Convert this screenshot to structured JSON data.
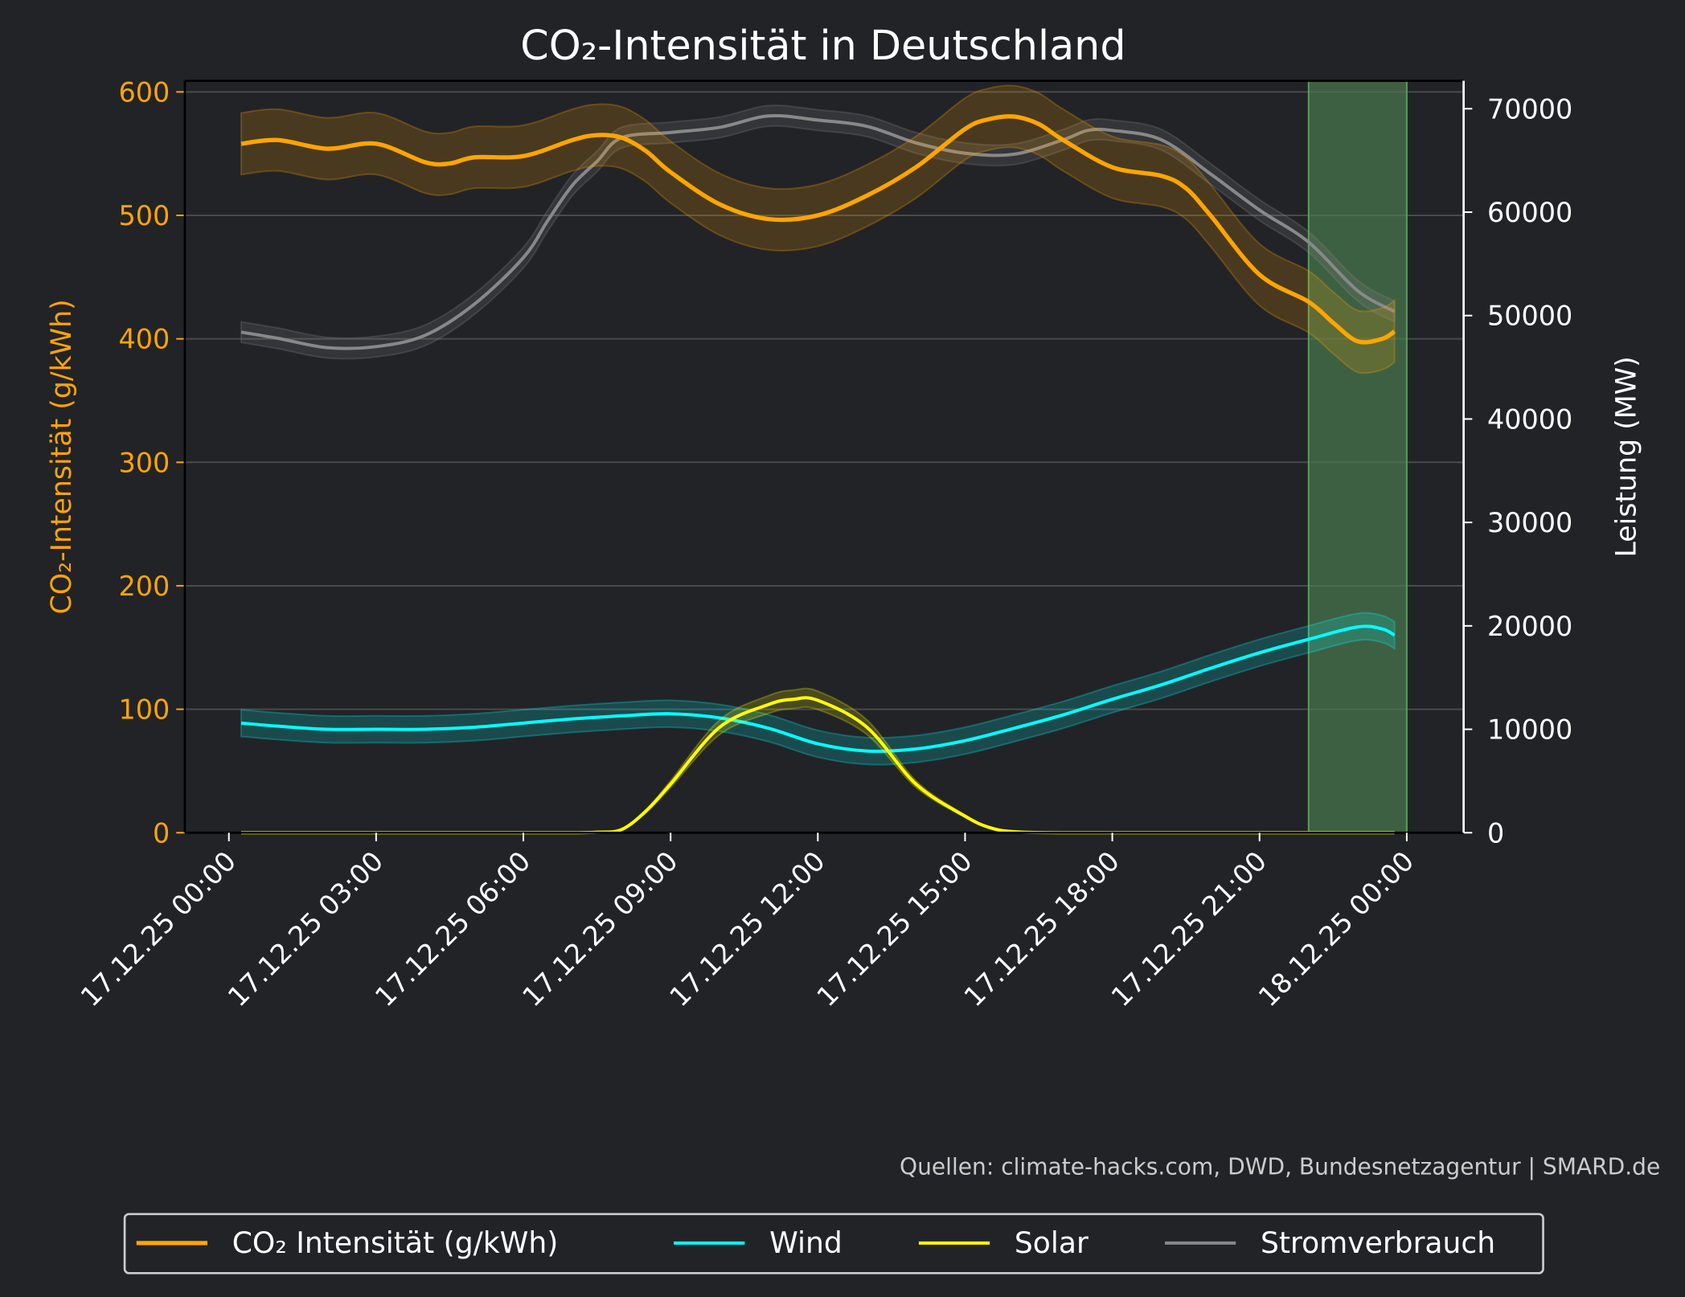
{
  "chart_data": {
    "type": "line",
    "title": "CO₂-Intensität in Deutschland",
    "source": "Quellen: climate-hacks.com, DWD, Bundesnetzagentur | SMARD.de",
    "grid": true,
    "legend_position": "bottom",
    "background": "#222327",
    "x_tick_labels": [
      "17.12.25 00:00",
      "17.12.25 03:00",
      "17.12.25 06:00",
      "17.12.25 09:00",
      "17.12.25 12:00",
      "17.12.25 15:00",
      "17.12.25 18:00",
      "17.12.25 21:00",
      "18.12.25 00:00"
    ],
    "x_unit": "hours since 17.12.25 00:00",
    "highlight_span": {
      "from": 22,
      "to": 24,
      "color": "#4a7a4e"
    },
    "left_axis": {
      "label": "CO₂-Intensität (g/kWh)",
      "ylim": [
        0,
        609
      ],
      "ticks": [
        0,
        100,
        200,
        300,
        400,
        500,
        600
      ],
      "color": "#ffa500"
    },
    "right_axis": {
      "label": "Leistung (MW)",
      "ylim": [
        0,
        72700
      ],
      "ticks": [
        0,
        10000,
        20000,
        30000,
        40000,
        50000,
        60000,
        70000
      ],
      "color": "#ffffff"
    },
    "series": [
      {
        "name": "CO₂ Intensität (g/kWh)",
        "axis": "left",
        "color": "#ffa500",
        "band": 25,
        "x": [
          0.25,
          1,
          2,
          3,
          4,
          4.5,
          5,
          6,
          7,
          7.5,
          8,
          8.5,
          9,
          10,
          11,
          12,
          13,
          14,
          15,
          15.5,
          16,
          16.5,
          17,
          18,
          19,
          19.5,
          20,
          21,
          22,
          22.5,
          23,
          23.5,
          23.75
        ],
        "y": [
          558,
          561,
          554,
          558,
          543,
          542,
          547,
          548,
          561,
          565,
          563,
          552,
          535,
          509,
          497,
          500,
          516,
          539,
          570,
          578,
          580,
          574,
          561,
          539,
          532,
          522,
          500,
          452,
          430,
          413,
          398,
          400,
          406
        ]
      },
      {
        "name": "Wind",
        "axis": "right",
        "color": "#00ffff",
        "band": 1300,
        "x": [
          0.25,
          1,
          2,
          3,
          4,
          5,
          6,
          7,
          8,
          9,
          10,
          11,
          12,
          13,
          14,
          15,
          16,
          17,
          18,
          19,
          20,
          21,
          22,
          23,
          23.5,
          23.75
        ],
        "y": [
          10600,
          10300,
          10000,
          10000,
          10000,
          10200,
          10600,
          11000,
          11300,
          11500,
          11100,
          10100,
          8600,
          7900,
          8100,
          8900,
          10100,
          11400,
          12900,
          14300,
          15900,
          17400,
          18700,
          19900,
          19700,
          19100
        ]
      },
      {
        "name": "Solar",
        "axis": "right",
        "color": "#ffff00",
        "band": 900,
        "x": [
          0.25,
          3,
          6,
          7,
          7.5,
          8,
          8.5,
          9,
          10,
          11,
          11.5,
          12,
          13,
          14,
          15,
          15.5,
          16,
          17,
          20,
          23.75
        ],
        "y": [
          0,
          0,
          0,
          0,
          50,
          300,
          2100,
          4700,
          10200,
          12400,
          12900,
          12800,
          10200,
          4700,
          1600,
          500,
          100,
          0,
          0,
          0
        ]
      },
      {
        "name": "Stromverbrauch",
        "axis": "right",
        "color": "#888888",
        "band": 1000,
        "x": [
          0.25,
          1,
          2,
          3,
          4,
          5,
          6,
          6.5,
          7,
          7.5,
          8,
          9,
          10,
          11,
          12,
          13,
          14,
          15,
          16,
          17,
          17.5,
          18,
          19,
          20,
          21,
          22,
          23,
          23.75
        ],
        "y": [
          48400,
          47800,
          46900,
          47000,
          48100,
          51100,
          55600,
          59200,
          62600,
          64900,
          67200,
          67700,
          68200,
          69300,
          68900,
          68300,
          66700,
          65700,
          65600,
          67000,
          67900,
          67900,
          67000,
          63700,
          60200,
          57100,
          52400,
          50400
        ]
      }
    ]
  }
}
